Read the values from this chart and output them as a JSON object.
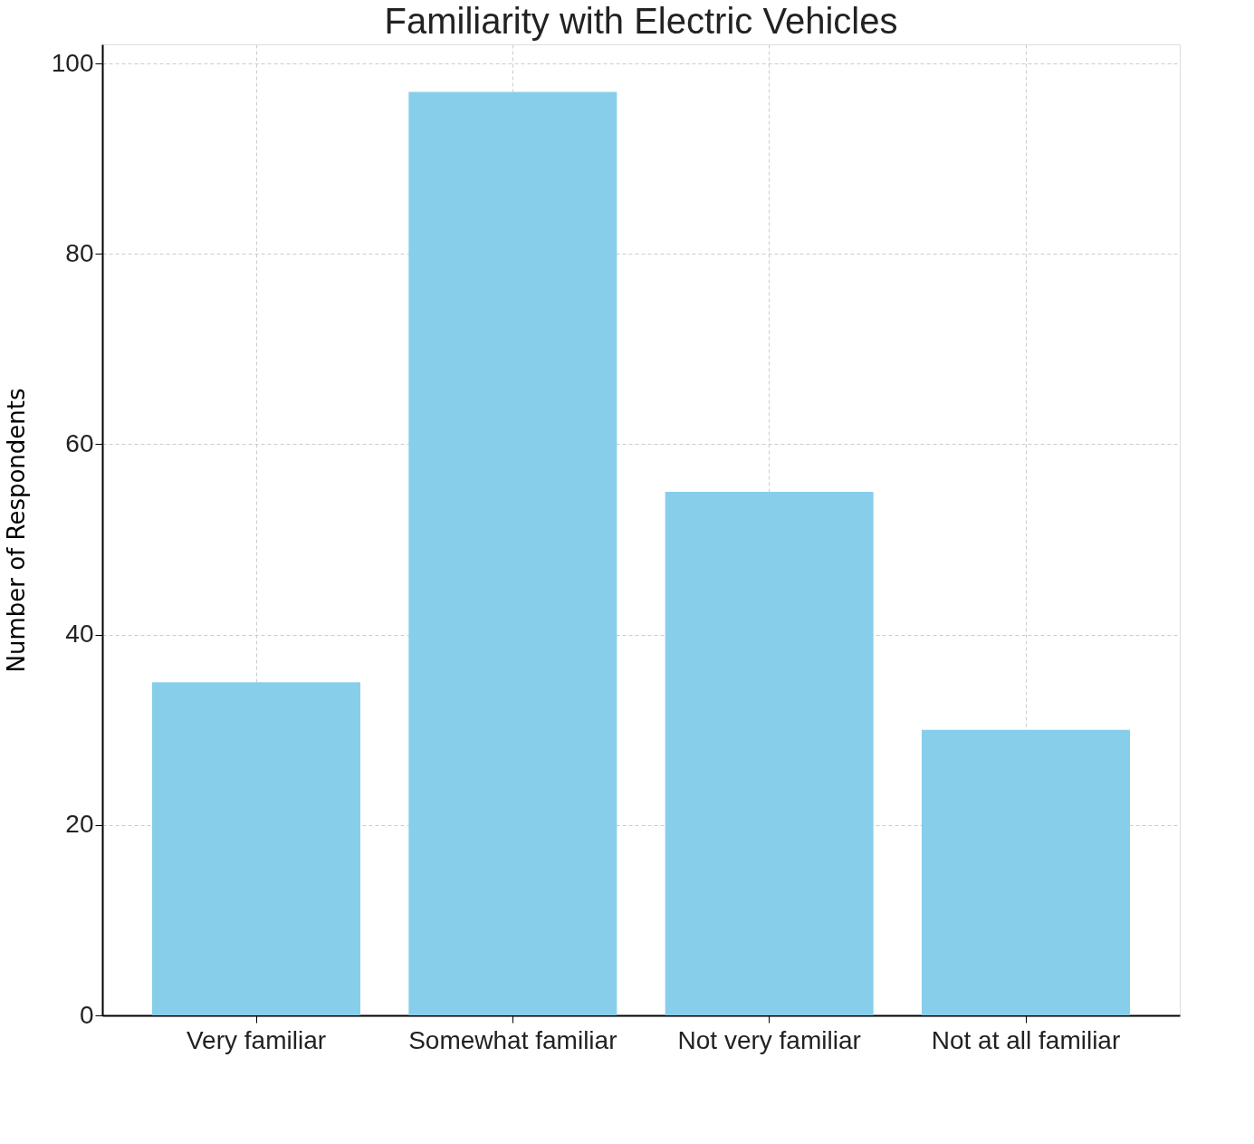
{
  "chart_data": {
    "type": "bar",
    "title": "Familiarity with Electric Vehicles",
    "ylabel": "Number of Respondents",
    "categories": [
      "Very familiar",
      "Somewhat familiar",
      "Not very familiar",
      "Not at all familiar"
    ],
    "values": [
      35,
      97,
      55,
      30
    ],
    "color": "#87ceeb",
    "ylim": [
      0,
      102
    ],
    "yticks": [
      0,
      20,
      40,
      60,
      80,
      100
    ],
    "grid": true,
    "line_style": "dashed"
  }
}
